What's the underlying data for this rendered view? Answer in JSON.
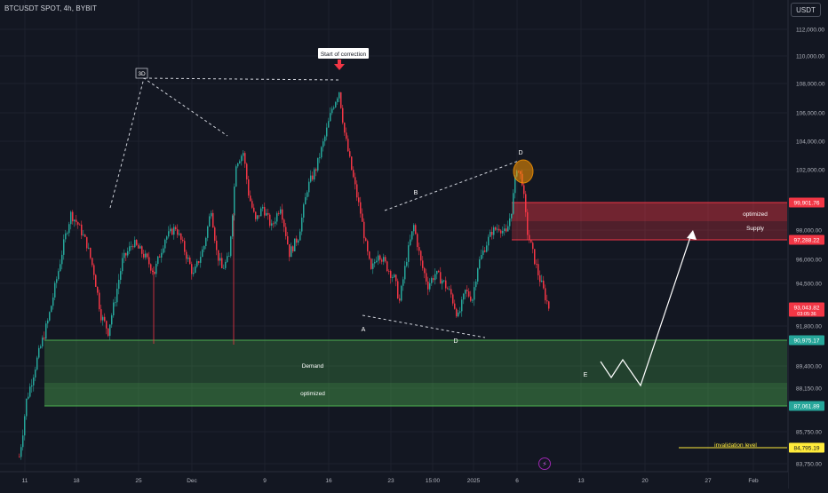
{
  "header": {
    "symbol": "BTCUSDT SPOT, 4h, BYBIT",
    "currency": "USDT"
  },
  "chart_data": {
    "type": "candlestick",
    "y_axis_ticks": [
      112000,
      110000,
      108000,
      106000,
      104000,
      102000,
      98000,
      96000,
      94500,
      91800,
      89400,
      88150,
      85750,
      83750
    ],
    "y_axis_ticks_labels": [
      "112,000.00",
      "110,000.00",
      "108,000.00",
      "106,000.00",
      "104,000.00",
      "102,000.00",
      "98,000.00",
      "96,000.00",
      "94,500.00",
      "91,800.00",
      "89,400.00",
      "88,150.00",
      "85,750.00",
      "83,750.00"
    ],
    "x_axis_ticks": [
      "11",
      "18",
      "25",
      "Dec",
      "9",
      "16",
      "23",
      "15:00",
      "2025",
      "6",
      "13",
      "20",
      "27",
      "Feb"
    ],
    "price_tags": [
      {
        "label": "99,901.76",
        "value": 99901.76,
        "color": "#f23645"
      },
      {
        "label": "97,288.22",
        "value": 97288.22,
        "color": "#f23645"
      },
      {
        "label": "93,043.82",
        "sub": "03:05:36",
        "value": 93043.82,
        "color": "#f23645"
      },
      {
        "label": "90,975.17",
        "value": 90975.17,
        "color": "#26a69a"
      },
      {
        "label": "87,061.89",
        "value": 87061.89,
        "color": "#26a69a"
      },
      {
        "label": "84,795.19",
        "value": 84795.19,
        "color": "#ffeb3b"
      }
    ],
    "zones": {
      "supply": {
        "top": 99901.76,
        "bottom": 97288.22,
        "label_top": "optimized",
        "label_bottom": "Supply"
      },
      "demand": {
        "top": 90975.17,
        "bottom": 87061.89,
        "label_top": "Demand",
        "label_bottom": "optimized"
      }
    },
    "annotations": {
      "start_of_correction": "Start of correction",
      "three_d": "3D",
      "point_a": "A",
      "point_b": "B",
      "point_d_low": "D",
      "point_d_high": "D",
      "point_e": "E",
      "invalidation": "invalidation level"
    },
    "anchors": [
      {
        "t": 8,
        "p": 84200
      },
      {
        "t": 12,
        "p": 87400
      },
      {
        "t": 18,
        "p": 89800
      },
      {
        "t": 24,
        "p": 92100
      },
      {
        "t": 30,
        "p": 95300
      },
      {
        "t": 34,
        "p": 97600
      },
      {
        "t": 37,
        "p": 99100
      },
      {
        "t": 41,
        "p": 98400
      },
      {
        "t": 46,
        "p": 97000
      },
      {
        "t": 50,
        "p": 95200
      },
      {
        "t": 54,
        "p": 92500
      },
      {
        "t": 58,
        "p": 91500
      },
      {
        "t": 62,
        "p": 93600
      },
      {
        "t": 66,
        "p": 95900
      },
      {
        "t": 72,
        "p": 97100
      },
      {
        "t": 78,
        "p": 96300
      },
      {
        "t": 84,
        "p": 95200
      },
      {
        "t": 90,
        "p": 97400
      },
      {
        "t": 96,
        "p": 98200
      },
      {
        "t": 101,
        "p": 96600
      },
      {
        "t": 106,
        "p": 95000
      },
      {
        "t": 112,
        "p": 96900
      },
      {
        "t": 116,
        "p": 99500
      },
      {
        "t": 119,
        "p": 96500
      },
      {
        "t": 122,
        "p": 95400
      },
      {
        "t": 126,
        "p": 96100
      },
      {
        "t": 130,
        "p": 102500
      },
      {
        "t": 134,
        "p": 103200
      },
      {
        "t": 137,
        "p": 100500
      },
      {
        "t": 141,
        "p": 98600
      },
      {
        "t": 145,
        "p": 99600
      },
      {
        "t": 150,
        "p": 98200
      },
      {
        "t": 155,
        "p": 99700
      },
      {
        "t": 160,
        "p": 96400
      },
      {
        "t": 165,
        "p": 97500
      },
      {
        "t": 170,
        "p": 100800
      },
      {
        "t": 175,
        "p": 102100
      },
      {
        "t": 180,
        "p": 104300
      },
      {
        "t": 184,
        "p": 106300
      },
      {
        "t": 188,
        "p": 107500
      },
      {
        "t": 191,
        "p": 104600
      },
      {
        "t": 195,
        "p": 102000
      },
      {
        "t": 200,
        "p": 99200
      },
      {
        "t": 203,
        "p": 96900
      },
      {
        "t": 206,
        "p": 95200
      },
      {
        "t": 210,
        "p": 96500
      },
      {
        "t": 214,
        "p": 95700
      },
      {
        "t": 219,
        "p": 94800
      },
      {
        "t": 222,
        "p": 93400
      },
      {
        "t": 226,
        "p": 96100
      },
      {
        "t": 230,
        "p": 98300
      },
      {
        "t": 234,
        "p": 95800
      },
      {
        "t": 238,
        "p": 94400
      },
      {
        "t": 242,
        "p": 95100
      },
      {
        "t": 246,
        "p": 94700
      },
      {
        "t": 251,
        "p": 93800
      },
      {
        "t": 255,
        "p": 92400
      },
      {
        "t": 259,
        "p": 94000
      },
      {
        "t": 263,
        "p": 93600
      },
      {
        "t": 266,
        "p": 95600
      },
      {
        "t": 270,
        "p": 96800
      },
      {
        "t": 274,
        "p": 97900
      },
      {
        "t": 278,
        "p": 98200
      },
      {
        "t": 282,
        "p": 97700
      },
      {
        "t": 285,
        "p": 99400
      },
      {
        "t": 288,
        "p": 102200
      },
      {
        "t": 291,
        "p": 101300
      },
      {
        "t": 294,
        "p": 97800
      },
      {
        "t": 297,
        "p": 96400
      },
      {
        "t": 300,
        "p": 95100
      },
      {
        "t": 304,
        "p": 93700
      },
      {
        "t": 306,
        "p": 93044
      }
    ]
  }
}
